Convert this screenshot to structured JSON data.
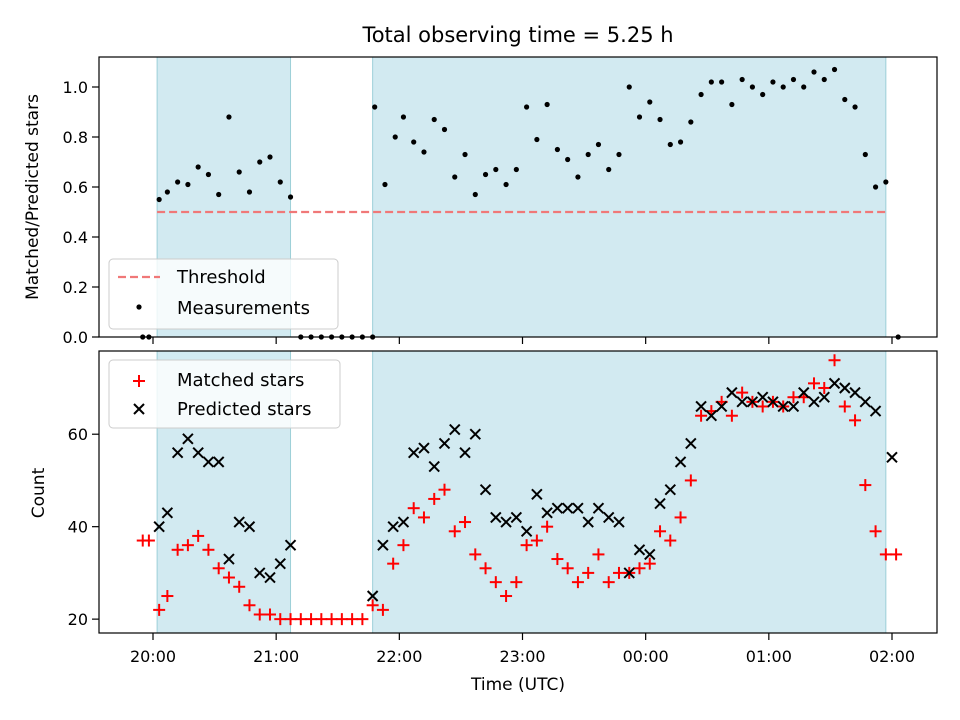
{
  "chart_data": {
    "title": "Total observing time = 5.25 h",
    "xlabel": "Time (UTC)",
    "x_ticks": [
      "20:00",
      "21:00",
      "22:00",
      "23:00",
      "00:00",
      "01:00",
      "02:00"
    ],
    "shaded_intervals": [
      [
        "20:02",
        "21:07"
      ],
      [
        "21:47",
        "01:57"
      ]
    ],
    "top": {
      "type": "scatter",
      "ylabel": "Matched/Predicted stars",
      "ylim": [
        0,
        1.12
      ],
      "y_ticks": [
        "0.0",
        "0.2",
        "0.4",
        "0.6",
        "0.8",
        "1.0"
      ],
      "legend_position": "lower-left",
      "threshold": {
        "name": "Threshold",
        "value": 0.5,
        "x_range": [
          "20:02",
          "01:57"
        ],
        "color": "#f07878"
      },
      "series": [
        {
          "name": "Measurements",
          "color": "#000000",
          "points": [
            [
              "19:55",
              0.0
            ],
            [
              "19:58",
              0.0
            ],
            [
              "20:03",
              0.55
            ],
            [
              "20:07",
              0.58
            ],
            [
              "20:12",
              0.62
            ],
            [
              "20:17",
              0.61
            ],
            [
              "20:22",
              0.68
            ],
            [
              "20:27",
              0.65
            ],
            [
              "20:32",
              0.57
            ],
            [
              "20:37",
              0.88
            ],
            [
              "20:42",
              0.66
            ],
            [
              "20:47",
              0.58
            ],
            [
              "20:52",
              0.7
            ],
            [
              "20:57",
              0.72
            ],
            [
              "21:02",
              0.62
            ],
            [
              "21:07",
              0.56
            ],
            [
              "21:12",
              0.0
            ],
            [
              "21:17",
              0.0
            ],
            [
              "21:22",
              0.0
            ],
            [
              "21:27",
              0.0
            ],
            [
              "21:32",
              0.0
            ],
            [
              "21:37",
              0.0
            ],
            [
              "21:42",
              0.0
            ],
            [
              "21:47",
              0.0
            ],
            [
              "21:48",
              0.92
            ],
            [
              "21:53",
              0.61
            ],
            [
              "21:58",
              0.8
            ],
            [
              "22:02",
              0.88
            ],
            [
              "22:07",
              0.78
            ],
            [
              "22:12",
              0.74
            ],
            [
              "22:17",
              0.87
            ],
            [
              "22:22",
              0.83
            ],
            [
              "22:27",
              0.64
            ],
            [
              "22:32",
              0.73
            ],
            [
              "22:37",
              0.57
            ],
            [
              "22:42",
              0.65
            ],
            [
              "22:47",
              0.67
            ],
            [
              "22:52",
              0.61
            ],
            [
              "22:57",
              0.67
            ],
            [
              "23:02",
              0.92
            ],
            [
              "23:07",
              0.79
            ],
            [
              "23:12",
              0.93
            ],
            [
              "23:17",
              0.75
            ],
            [
              "23:22",
              0.71
            ],
            [
              "23:27",
              0.64
            ],
            [
              "23:32",
              0.73
            ],
            [
              "23:37",
              0.77
            ],
            [
              "23:42",
              0.67
            ],
            [
              "23:47",
              0.73
            ],
            [
              "23:52",
              1.0
            ],
            [
              "23:57",
              0.88
            ],
            [
              "00:02",
              0.94
            ],
            [
              "00:07",
              0.87
            ],
            [
              "00:12",
              0.77
            ],
            [
              "00:17",
              0.78
            ],
            [
              "00:22",
              0.86
            ],
            [
              "00:27",
              0.97
            ],
            [
              "00:32",
              1.02
            ],
            [
              "00:37",
              1.02
            ],
            [
              "00:42",
              0.93
            ],
            [
              "00:47",
              1.03
            ],
            [
              "00:52",
              1.0
            ],
            [
              "00:57",
              0.97
            ],
            [
              "01:02",
              1.02
            ],
            [
              "01:07",
              1.0
            ],
            [
              "01:12",
              1.03
            ],
            [
              "01:17",
              1.0
            ],
            [
              "01:22",
              1.06
            ],
            [
              "01:27",
              1.03
            ],
            [
              "01:32",
              1.07
            ],
            [
              "01:37",
              0.95
            ],
            [
              "01:42",
              0.92
            ],
            [
              "01:47",
              0.73
            ],
            [
              "01:52",
              0.6
            ],
            [
              "01:57",
              0.62
            ],
            [
              "02:03",
              0.0
            ]
          ]
        }
      ]
    },
    "bottom": {
      "type": "scatter",
      "ylabel": "Count",
      "ylim": [
        17,
        78
      ],
      "y_ticks": [
        "20",
        "40",
        "60"
      ],
      "legend_position": "upper-left",
      "series": [
        {
          "name": "Matched stars",
          "marker": "plus",
          "color": "#ff0000",
          "points": [
            [
              "19:55",
              37
            ],
            [
              "19:58",
              37
            ],
            [
              "20:03",
              22
            ],
            [
              "20:07",
              25
            ],
            [
              "20:12",
              35
            ],
            [
              "20:17",
              36
            ],
            [
              "20:22",
              38
            ],
            [
              "20:27",
              35
            ],
            [
              "20:32",
              31
            ],
            [
              "20:37",
              29
            ],
            [
              "20:42",
              27
            ],
            [
              "20:47",
              23
            ],
            [
              "20:52",
              21
            ],
            [
              "20:57",
              21
            ],
            [
              "21:02",
              20
            ],
            [
              "21:07",
              20
            ],
            [
              "21:12",
              20
            ],
            [
              "21:17",
              20
            ],
            [
              "21:22",
              20
            ],
            [
              "21:27",
              20
            ],
            [
              "21:32",
              20
            ],
            [
              "21:37",
              20
            ],
            [
              "21:42",
              20
            ],
            [
              "21:47",
              23
            ],
            [
              "21:52",
              22
            ],
            [
              "21:57",
              32
            ],
            [
              "22:02",
              36
            ],
            [
              "22:07",
              44
            ],
            [
              "22:12",
              42
            ],
            [
              "22:17",
              46
            ],
            [
              "22:22",
              48
            ],
            [
              "22:27",
              39
            ],
            [
              "22:32",
              41
            ],
            [
              "22:37",
              34
            ],
            [
              "22:42",
              31
            ],
            [
              "22:47",
              28
            ],
            [
              "22:52",
              25
            ],
            [
              "22:57",
              28
            ],
            [
              "23:02",
              36
            ],
            [
              "23:07",
              37
            ],
            [
              "23:12",
              40
            ],
            [
              "23:17",
              33
            ],
            [
              "23:22",
              31
            ],
            [
              "23:27",
              28
            ],
            [
              "23:32",
              30
            ],
            [
              "23:37",
              34
            ],
            [
              "23:42",
              28
            ],
            [
              "23:47",
              30
            ],
            [
              "23:52",
              30
            ],
            [
              "23:57",
              31
            ],
            [
              "00:02",
              32
            ],
            [
              "00:07",
              39
            ],
            [
              "00:12",
              37
            ],
            [
              "00:17",
              42
            ],
            [
              "00:22",
              50
            ],
            [
              "00:27",
              64
            ],
            [
              "00:32",
              65
            ],
            [
              "00:37",
              67
            ],
            [
              "00:42",
              64
            ],
            [
              "00:47",
              69
            ],
            [
              "00:52",
              67
            ],
            [
              "00:57",
              66
            ],
            [
              "01:02",
              67
            ],
            [
              "01:07",
              66
            ],
            [
              "01:12",
              68
            ],
            [
              "01:17",
              68
            ],
            [
              "01:22",
              71
            ],
            [
              "01:27",
              70
            ],
            [
              "01:32",
              76
            ],
            [
              "01:37",
              66
            ],
            [
              "01:42",
              63
            ],
            [
              "01:47",
              49
            ],
            [
              "01:52",
              39
            ],
            [
              "01:57",
              34
            ],
            [
              "02:02",
              34
            ]
          ]
        },
        {
          "name": "Predicted stars",
          "marker": "x",
          "color": "#000000",
          "points": [
            [
              "20:03",
              40
            ],
            [
              "20:07",
              43
            ],
            [
              "20:12",
              56
            ],
            [
              "20:17",
              59
            ],
            [
              "20:22",
              56
            ],
            [
              "20:27",
              54
            ],
            [
              "20:32",
              54
            ],
            [
              "20:37",
              33
            ],
            [
              "20:42",
              41
            ],
            [
              "20:47",
              40
            ],
            [
              "20:52",
              30
            ],
            [
              "20:57",
              29
            ],
            [
              "21:02",
              32
            ],
            [
              "21:07",
              36
            ],
            [
              "21:47",
              25
            ],
            [
              "21:52",
              36
            ],
            [
              "21:57",
              40
            ],
            [
              "22:02",
              41
            ],
            [
              "22:07",
              56
            ],
            [
              "22:12",
              57
            ],
            [
              "22:17",
              53
            ],
            [
              "22:22",
              58
            ],
            [
              "22:27",
              61
            ],
            [
              "22:32",
              56
            ],
            [
              "22:37",
              60
            ],
            [
              "22:42",
              48
            ],
            [
              "22:47",
              42
            ],
            [
              "22:52",
              41
            ],
            [
              "22:57",
              42
            ],
            [
              "23:02",
              39
            ],
            [
              "23:07",
              47
            ],
            [
              "23:12",
              43
            ],
            [
              "23:17",
              44
            ],
            [
              "23:22",
              44
            ],
            [
              "23:27",
              44
            ],
            [
              "23:32",
              41
            ],
            [
              "23:37",
              44
            ],
            [
              "23:42",
              42
            ],
            [
              "23:47",
              41
            ],
            [
              "23:52",
              30
            ],
            [
              "23:57",
              35
            ],
            [
              "00:02",
              34
            ],
            [
              "00:07",
              45
            ],
            [
              "00:12",
              48
            ],
            [
              "00:17",
              54
            ],
            [
              "00:22",
              58
            ],
            [
              "00:27",
              66
            ],
            [
              "00:32",
              64
            ],
            [
              "00:37",
              66
            ],
            [
              "00:42",
              69
            ],
            [
              "00:47",
              67
            ],
            [
              "00:52",
              67
            ],
            [
              "00:57",
              68
            ],
            [
              "01:02",
              67
            ],
            [
              "01:07",
              66
            ],
            [
              "01:12",
              66
            ],
            [
              "01:17",
              69
            ],
            [
              "01:22",
              67
            ],
            [
              "01:27",
              68
            ],
            [
              "01:32",
              71
            ],
            [
              "01:37",
              70
            ],
            [
              "01:42",
              69
            ],
            [
              "01:47",
              67
            ],
            [
              "01:52",
              65
            ],
            [
              "02:00",
              55
            ]
          ]
        }
      ]
    }
  }
}
